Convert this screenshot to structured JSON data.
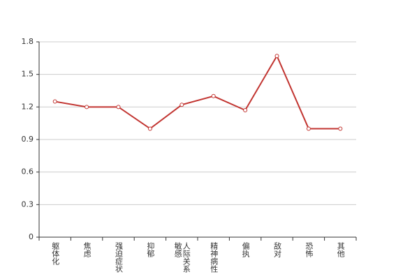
{
  "chart_data": {
    "type": "line",
    "categories": [
      "躯体化",
      "焦虑",
      "强迫症状",
      "抑郁",
      "人际关系敏感",
      "精神病性",
      "偏执",
      "敌对",
      "恐怖",
      "其他"
    ],
    "values": [
      1.25,
      1.2,
      1.2,
      1.0,
      1.22,
      1.3,
      1.17,
      1.67,
      1.0,
      1.0
    ],
    "color": "#c23531",
    "ylim": [
      0,
      1.8
    ],
    "yticks": [
      0,
      0.3,
      0.6,
      0.9,
      1.2,
      1.5,
      1.8
    ],
    "grid": true
  }
}
